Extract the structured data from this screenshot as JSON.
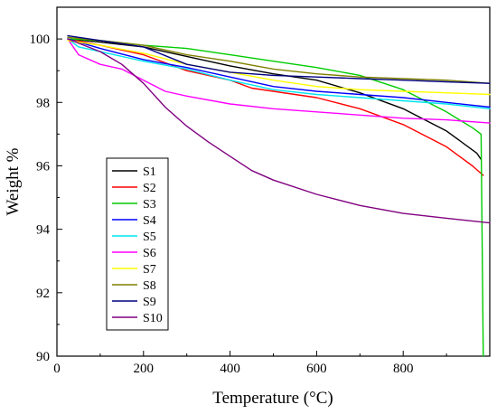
{
  "chart_data": {
    "type": "line",
    "title": "",
    "xlabel": "Temperature (°C)",
    "ylabel": "Weight %",
    "xlim": [
      0,
      1000
    ],
    "ylim": [
      90,
      101
    ],
    "x_ticks": [
      0,
      200,
      400,
      600,
      800
    ],
    "y_ticks": [
      90,
      92,
      94,
      96,
      98,
      100
    ],
    "grid": false,
    "legend_position": "lower-left",
    "series": [
      {
        "name": "S1",
        "color": "#000000",
        "points": [
          [
            25,
            100
          ],
          [
            100,
            99.9
          ],
          [
            200,
            99.75
          ],
          [
            300,
            99.45
          ],
          [
            400,
            99.15
          ],
          [
            500,
            98.9
          ],
          [
            600,
            98.7
          ],
          [
            700,
            98.3
          ],
          [
            800,
            97.8
          ],
          [
            900,
            97.1
          ],
          [
            970,
            96.4
          ],
          [
            980,
            96.2
          ]
        ]
      },
      {
        "name": "S2",
        "color": "#ff0000",
        "points": [
          [
            25,
            100
          ],
          [
            100,
            99.8
          ],
          [
            200,
            99.5
          ],
          [
            300,
            99.0
          ],
          [
            400,
            98.7
          ],
          [
            450,
            98.45
          ],
          [
            500,
            98.35
          ],
          [
            600,
            98.15
          ],
          [
            700,
            97.8
          ],
          [
            800,
            97.3
          ],
          [
            900,
            96.6
          ],
          [
            960,
            96.0
          ],
          [
            985,
            95.7
          ]
        ]
      },
      {
        "name": "S3",
        "color": "#00cc00",
        "points": [
          [
            25,
            100
          ],
          [
            100,
            99.95
          ],
          [
            200,
            99.8
          ],
          [
            300,
            99.7
          ],
          [
            400,
            99.5
          ],
          [
            500,
            99.3
          ],
          [
            600,
            99.1
          ],
          [
            700,
            98.85
          ],
          [
            800,
            98.4
          ],
          [
            900,
            97.7
          ],
          [
            960,
            97.2
          ],
          [
            980,
            97.0
          ],
          [
            985,
            90.0
          ]
        ]
      },
      {
        "name": "S4",
        "color": "#0000ff",
        "points": [
          [
            25,
            100
          ],
          [
            100,
            99.7
          ],
          [
            200,
            99.35
          ],
          [
            300,
            99.1
          ],
          [
            400,
            98.8
          ],
          [
            500,
            98.5
          ],
          [
            600,
            98.35
          ],
          [
            700,
            98.25
          ],
          [
            800,
            98.15
          ],
          [
            900,
            98.0
          ],
          [
            1000,
            97.85
          ]
        ]
      },
      {
        "name": "S5",
        "color": "#00e5ee",
        "points": [
          [
            25,
            100
          ],
          [
            50,
            99.75
          ],
          [
            100,
            99.6
          ],
          [
            200,
            99.3
          ],
          [
            300,
            99.05
          ],
          [
            400,
            98.7
          ],
          [
            500,
            98.4
          ],
          [
            600,
            98.25
          ],
          [
            700,
            98.15
          ],
          [
            800,
            98.05
          ],
          [
            900,
            97.95
          ],
          [
            1000,
            97.8
          ]
        ]
      },
      {
        "name": "S6",
        "color": "#ff00ff",
        "points": [
          [
            25,
            100
          ],
          [
            50,
            99.5
          ],
          [
            100,
            99.2
          ],
          [
            150,
            99.05
          ],
          [
            200,
            98.7
          ],
          [
            250,
            98.35
          ],
          [
            300,
            98.2
          ],
          [
            400,
            97.95
          ],
          [
            500,
            97.8
          ],
          [
            600,
            97.7
          ],
          [
            700,
            97.6
          ],
          [
            800,
            97.5
          ],
          [
            900,
            97.45
          ],
          [
            1000,
            97.35
          ]
        ]
      },
      {
        "name": "S7",
        "color": "#ffff00",
        "points": [
          [
            25,
            99.95
          ],
          [
            100,
            99.8
          ],
          [
            200,
            99.55
          ],
          [
            300,
            99.2
          ],
          [
            400,
            98.95
          ],
          [
            500,
            98.7
          ],
          [
            600,
            98.5
          ],
          [
            700,
            98.4
          ],
          [
            800,
            98.35
          ],
          [
            900,
            98.3
          ],
          [
            1000,
            98.25
          ]
        ]
      },
      {
        "name": "S8",
        "color": "#808000",
        "points": [
          [
            25,
            100.05
          ],
          [
            100,
            99.95
          ],
          [
            200,
            99.8
          ],
          [
            300,
            99.5
          ],
          [
            400,
            99.3
          ],
          [
            500,
            99.05
          ],
          [
            600,
            98.9
          ],
          [
            700,
            98.8
          ],
          [
            800,
            98.75
          ],
          [
            900,
            98.7
          ],
          [
            1000,
            98.6
          ]
        ]
      },
      {
        "name": "S9",
        "color": "#000080",
        "points": [
          [
            25,
            100.1
          ],
          [
            100,
            99.95
          ],
          [
            200,
            99.75
          ],
          [
            300,
            99.2
          ],
          [
            400,
            98.95
          ],
          [
            500,
            98.85
          ],
          [
            600,
            98.8
          ],
          [
            700,
            98.75
          ],
          [
            800,
            98.7
          ],
          [
            900,
            98.65
          ],
          [
            1000,
            98.6
          ]
        ]
      },
      {
        "name": "S10",
        "color": "#800080",
        "points": [
          [
            25,
            100
          ],
          [
            100,
            99.6
          ],
          [
            150,
            99.2
          ],
          [
            200,
            98.6
          ],
          [
            250,
            97.85
          ],
          [
            300,
            97.25
          ],
          [
            350,
            96.75
          ],
          [
            400,
            96.3
          ],
          [
            450,
            95.85
          ],
          [
            500,
            95.55
          ],
          [
            600,
            95.1
          ],
          [
            700,
            94.75
          ],
          [
            800,
            94.5
          ],
          [
            900,
            94.35
          ],
          [
            1000,
            94.2
          ]
        ]
      }
    ]
  }
}
